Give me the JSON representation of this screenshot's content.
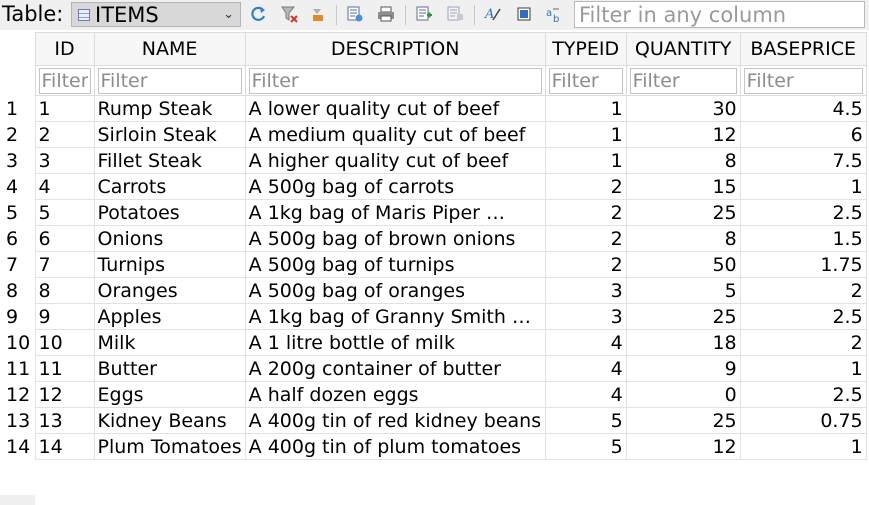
{
  "toolbar": {
    "table_label": "Table:",
    "table_name": "ITEMS",
    "filter_placeholder": "Filter in any column"
  },
  "columns": [
    "ID",
    "NAME",
    "DESCRIPTION",
    "TYPEID",
    "QUANTITY",
    "BASEPRICE"
  ],
  "filter_placeholder": "Filter",
  "rows": [
    {
      "rownum": "1",
      "cells": [
        "1",
        "Rump Steak",
        "A lower quality cut of beef",
        "1",
        "30",
        "4.5"
      ]
    },
    {
      "rownum": "2",
      "cells": [
        "2",
        "Sirloin Steak",
        "A medium quality cut of beef",
        "1",
        "12",
        "6"
      ]
    },
    {
      "rownum": "3",
      "cells": [
        "3",
        "Fillet Steak",
        "A higher quality cut of beef",
        "1",
        "8",
        "7.5"
      ]
    },
    {
      "rownum": "4",
      "cells": [
        "4",
        "Carrots",
        "A 500g bag of carrots",
        "2",
        "15",
        "1"
      ]
    },
    {
      "rownum": "5",
      "cells": [
        "5",
        "Potatoes",
        "A 1kg bag of Maris Piper …",
        "2",
        "25",
        "2.5"
      ]
    },
    {
      "rownum": "6",
      "cells": [
        "6",
        "Onions",
        "A 500g bag of brown onions",
        "2",
        "8",
        "1.5"
      ]
    },
    {
      "rownum": "7",
      "cells": [
        "7",
        "Turnips",
        "A 500g bag of turnips",
        "2",
        "50",
        "1.75"
      ]
    },
    {
      "rownum": "8",
      "cells": [
        "8",
        "Oranges",
        "A 500g bag of oranges",
        "3",
        "5",
        "2"
      ]
    },
    {
      "rownum": "9",
      "cells": [
        "9",
        "Apples",
        "A 1kg bag of Granny Smith …",
        "3",
        "25",
        "2.5"
      ]
    },
    {
      "rownum": "10",
      "cells": [
        "10",
        "Milk",
        "A 1 litre bottle of milk",
        "4",
        "18",
        "2"
      ]
    },
    {
      "rownum": "11",
      "cells": [
        "11",
        "Butter",
        "A 200g container of butter",
        "4",
        "9",
        "1"
      ]
    },
    {
      "rownum": "12",
      "cells": [
        "12",
        "Eggs",
        "A half dozen eggs",
        "4",
        "0",
        "2.5"
      ]
    },
    {
      "rownum": "13",
      "cells": [
        "13",
        "Kidney Beans",
        "A 400g tin of red kidney beans",
        "5",
        "25",
        "0.75"
      ]
    },
    {
      "rownum": "14",
      "cells": [
        "14",
        "Plum Tomatoes",
        "A 400g tin of plum tomatoes",
        "5",
        "12",
        "1"
      ]
    }
  ]
}
